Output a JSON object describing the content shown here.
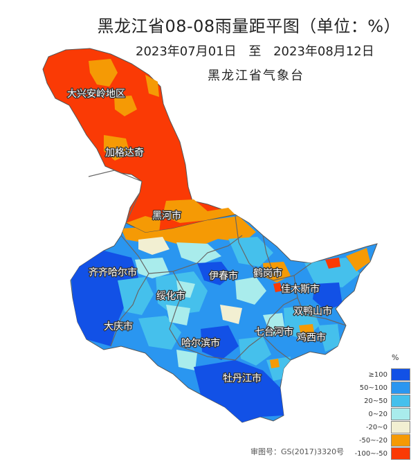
{
  "header": {
    "title": "黑龙江省08-08雨量距平图（单位：%）",
    "date_start": "2023年07月01日",
    "date_sep": "至",
    "date_end": "2023年08月12日",
    "agency": "黑龙江省气象台"
  },
  "map": {
    "regions": [
      {
        "name": "大兴安岭地区",
        "category": "-100~-50"
      },
      {
        "name": "加格达奇",
        "category": "-100~-50"
      },
      {
        "name": "黑河市",
        "category": "-100~-50"
      },
      {
        "name": "齐齐哈尔市",
        "category": "≥100"
      },
      {
        "name": "伊春市",
        "category": "20~50"
      },
      {
        "name": "鹤岗市",
        "category": "-50~-20"
      },
      {
        "name": "绥化市",
        "category": "20~50"
      },
      {
        "name": "佳木斯市",
        "category": "50~100"
      },
      {
        "name": "双鸭山市",
        "category": "50~100"
      },
      {
        "name": "大庆市",
        "category": "≥100"
      },
      {
        "name": "七台河市",
        "category": "50~100"
      },
      {
        "name": "鸡西市",
        "category": "50~100"
      },
      {
        "name": "哈尔滨市",
        "category": "50~100"
      },
      {
        "name": "牡丹江市",
        "category": "≥100"
      }
    ]
  },
  "legend": {
    "unit": "%",
    "items": [
      {
        "label": "≥100",
        "color": "#1251e6"
      },
      {
        "label": "50~100",
        "color": "#2a96f0"
      },
      {
        "label": "20~50",
        "color": "#45c0ec"
      },
      {
        "label": "0~20",
        "color": "#a9ecec"
      },
      {
        "label": "-20~0",
        "color": "#f2efd2"
      },
      {
        "label": "-50~-20",
        "color": "#f59a05"
      },
      {
        "label": "-100~-50",
        "color": "#fa3a05"
      }
    ]
  },
  "footer": {
    "approval": "审图号：GS(2017)3320号"
  }
}
